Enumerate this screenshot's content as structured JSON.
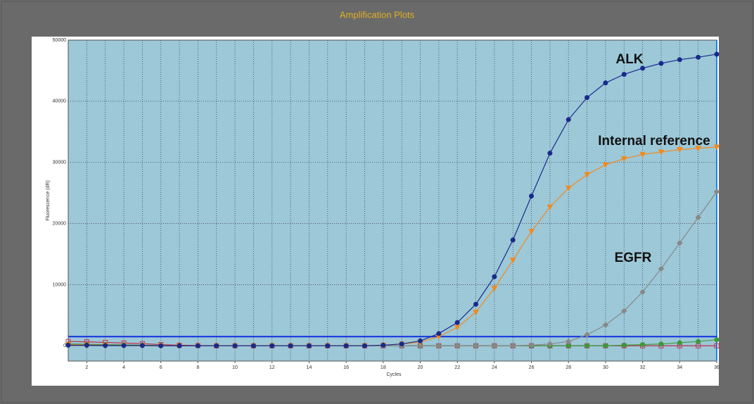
{
  "chart_data": {
    "type": "line",
    "title": "Amplification Plots",
    "x_label": "Cycles",
    "y_label": "Fluorescence (dR)",
    "x": [
      1,
      2,
      3,
      4,
      5,
      6,
      7,
      8,
      9,
      10,
      11,
      12,
      13,
      14,
      15,
      16,
      17,
      18,
      19,
      20,
      21,
      22,
      23,
      24,
      25,
      26,
      27,
      28,
      29,
      30,
      31,
      32,
      33,
      34,
      35,
      36
    ],
    "xlim": [
      1,
      36
    ],
    "xticks": [
      2,
      4,
      6,
      8,
      10,
      12,
      14,
      16,
      18,
      20,
      22,
      24,
      26,
      28,
      30,
      32,
      34,
      36
    ],
    "ylim": [
      -2500,
      50000
    ],
    "yticks": [
      0,
      10000,
      20000,
      30000,
      40000,
      50000
    ],
    "grid": true,
    "threshold": 1500,
    "series": [
      {
        "color": "#c03050",
        "marker": "square",
        "values": [
          700,
          650,
          550,
          450,
          350,
          200,
          100,
          50,
          0,
          0,
          0,
          0,
          0,
          0,
          0,
          0,
          0,
          0,
          0,
          0,
          0,
          0,
          0,
          0,
          0,
          0,
          0,
          0,
          0,
          0,
          0,
          0,
          0,
          0,
          0,
          0
        ]
      },
      {
        "color": "#3a9a3a",
        "marker": "circle",
        "values": [
          300,
          250,
          200,
          150,
          100,
          50,
          0,
          0,
          0,
          0,
          0,
          0,
          0,
          0,
          0,
          0,
          0,
          0,
          0,
          0,
          0,
          0,
          0,
          0,
          0,
          0,
          0,
          0,
          0,
          0,
          100,
          200,
          300,
          500,
          700,
          1000
        ]
      },
      {
        "name": "EGFR",
        "color": "#888888",
        "marker": "diamond",
        "values": [
          0,
          0,
          0,
          0,
          0,
          0,
          0,
          0,
          0,
          0,
          0,
          0,
          0,
          0,
          0,
          0,
          0,
          0,
          0,
          0,
          0,
          0,
          0,
          0,
          0,
          100,
          300,
          700,
          1800,
          3400,
          5700,
          8800,
          12600,
          16800,
          21000,
          25200
        ]
      },
      {
        "name": "Internal reference",
        "color": "#f08a1e",
        "marker": "triangle",
        "values": [
          200,
          150,
          100,
          50,
          0,
          0,
          0,
          0,
          0,
          0,
          0,
          0,
          0,
          0,
          0,
          0,
          0,
          100,
          300,
          600,
          1500,
          3000,
          5500,
          9400,
          14000,
          18700,
          22700,
          25800,
          28000,
          29600,
          30600,
          31300,
          31700,
          32100,
          32300,
          32500
        ]
      },
      {
        "name": "ALK",
        "color": "#1a2a8a",
        "marker": "circle",
        "values": [
          100,
          100,
          50,
          50,
          50,
          0,
          0,
          0,
          0,
          0,
          0,
          0,
          0,
          0,
          0,
          0,
          0,
          100,
          300,
          800,
          2000,
          3800,
          6800,
          11300,
          17300,
          24500,
          31500,
          37000,
          40600,
          43000,
          44400,
          45400,
          46200,
          46800,
          47200,
          47700
        ]
      }
    ]
  }
}
